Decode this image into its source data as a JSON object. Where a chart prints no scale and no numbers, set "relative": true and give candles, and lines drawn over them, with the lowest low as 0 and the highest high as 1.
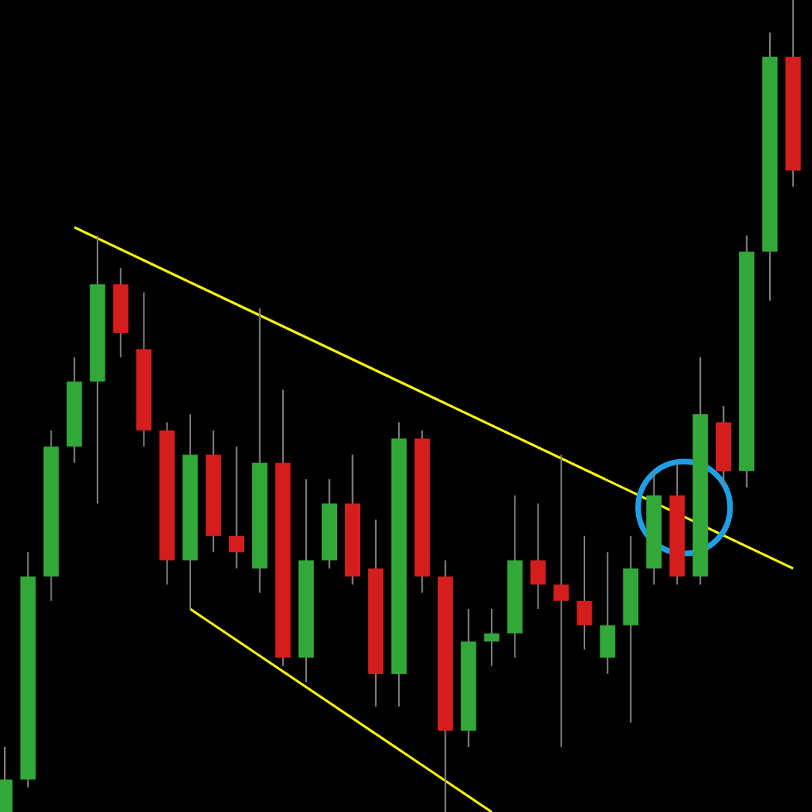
{
  "chart_data": {
    "type": "candlestick",
    "relative": true,
    "categories": [
      null,
      null,
      null,
      null,
      null,
      null,
      null,
      null,
      null,
      null,
      null,
      null,
      null,
      null,
      null,
      null,
      null,
      null,
      null,
      null,
      null,
      null,
      null,
      null,
      null,
      null,
      null,
      null,
      null,
      null,
      null,
      null,
      null,
      null,
      null
    ],
    "ohlc": [
      [
        0.0,
        0.08,
        0.0,
        0.04
      ],
      [
        0.04,
        0.32,
        0.03,
        0.29
      ],
      [
        0.29,
        0.47,
        0.26,
        0.45
      ],
      [
        0.45,
        0.56,
        0.43,
        0.53
      ],
      [
        0.53,
        0.71,
        0.38,
        0.65
      ],
      [
        0.65,
        0.67,
        0.56,
        0.59
      ],
      [
        0.57,
        0.64,
        0.45,
        0.47
      ],
      [
        0.47,
        0.48,
        0.28,
        0.31
      ],
      [
        0.31,
        0.49,
        0.25,
        0.44
      ],
      [
        0.44,
        0.47,
        0.32,
        0.34
      ],
      [
        0.34,
        0.45,
        0.3,
        0.32
      ],
      [
        0.3,
        0.62,
        0.27,
        0.43
      ],
      [
        0.43,
        0.52,
        0.18,
        0.19
      ],
      [
        0.19,
        0.41,
        0.16,
        0.31
      ],
      [
        0.31,
        0.41,
        0.3,
        0.38
      ],
      [
        0.38,
        0.44,
        0.28,
        0.29
      ],
      [
        0.3,
        0.36,
        0.13,
        0.17
      ],
      [
        0.17,
        0.48,
        0.13,
        0.46
      ],
      [
        0.46,
        0.47,
        0.27,
        0.29
      ],
      [
        0.29,
        0.31,
        0.0,
        0.1
      ],
      [
        0.1,
        0.25,
        0.08,
        0.21
      ],
      [
        0.21,
        0.25,
        0.18,
        0.22
      ],
      [
        0.22,
        0.39,
        0.19,
        0.31
      ],
      [
        0.31,
        0.38,
        0.25,
        0.28
      ],
      [
        0.28,
        0.44,
        0.08,
        0.26
      ],
      [
        0.26,
        0.34,
        0.2,
        0.23
      ],
      [
        0.19,
        0.32,
        0.17,
        0.23
      ],
      [
        0.23,
        0.34,
        0.11,
        0.3
      ],
      [
        0.3,
        0.42,
        0.28,
        0.39
      ],
      [
        0.39,
        0.43,
        0.28,
        0.29
      ],
      [
        0.29,
        0.56,
        0.28,
        0.49
      ],
      [
        0.48,
        0.5,
        0.4,
        0.42
      ],
      [
        0.42,
        0.71,
        0.4,
        0.69
      ],
      [
        0.69,
        0.96,
        0.63,
        0.93
      ],
      [
        0.93,
        1.0,
        0.77,
        0.79
      ]
    ],
    "colors": [
      "#33a83a",
      "#33a83a",
      "#33a83a",
      "#33a83a",
      "#33a83a",
      "#d41e1e",
      "#d41e1e",
      "#d41e1e",
      "#33a83a",
      "#d41e1e",
      "#d41e1e",
      "#33a83a",
      "#d41e1e",
      "#33a83a",
      "#33a83a",
      "#d41e1e",
      "#d41e1e",
      "#33a83a",
      "#d41e1e",
      "#d41e1e",
      "#33a83a",
      "#33a83a",
      "#33a83a",
      "#d41e1e",
      "#d41e1e",
      "#d41e1e",
      "#33a83a",
      "#33a83a",
      "#33a83a",
      "#d41e1e",
      "#33a83a",
      "#d41e1e",
      "#33a83a",
      "#33a83a",
      "#d41e1e"
    ],
    "series": [
      {
        "type": "line",
        "color": "#ffff00",
        "values": [
          null,
          null,
          null,
          0.72,
          null,
          null,
          null,
          null,
          null,
          null,
          null,
          null,
          null,
          null,
          null,
          null,
          null,
          null,
          null,
          null,
          null,
          null,
          null,
          null,
          null,
          null,
          null,
          null,
          null,
          null,
          null,
          null,
          null,
          null,
          0.3
        ]
      },
      {
        "type": "line",
        "color": "#ffff00",
        "values": [
          null,
          null,
          null,
          null,
          null,
          null,
          null,
          null,
          0.25,
          null,
          null,
          null,
          null,
          null,
          null,
          null,
          null,
          null,
          null,
          null,
          null,
          0.0,
          null,
          null,
          null,
          null,
          null,
          null,
          null,
          null,
          null,
          null,
          null,
          null,
          null
        ]
      }
    ]
  }
}
